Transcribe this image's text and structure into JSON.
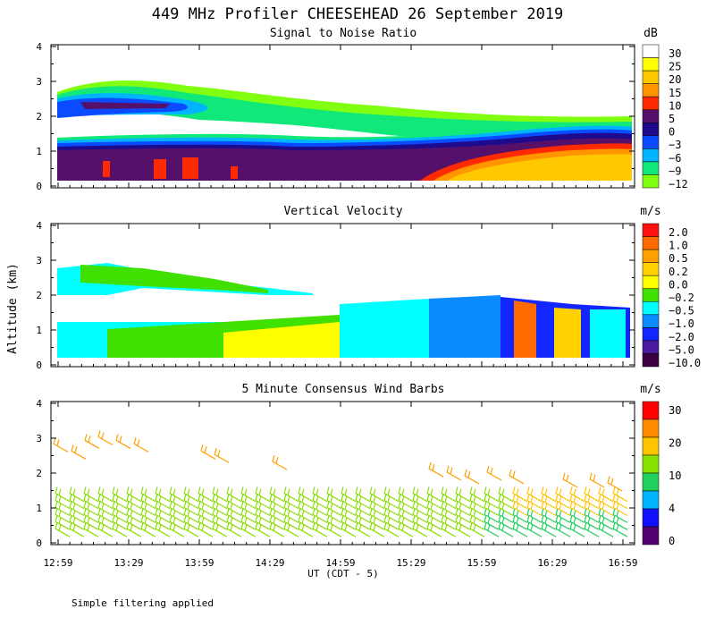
{
  "chart_data": {
    "title": "449 MHz Profiler CHEESEHEAD 26 September 2019",
    "ylabel": "Altitude (km)",
    "xlabel": "UT  (CDT - 5)",
    "x_ticks": [
      "12:59",
      "13:29",
      "13:59",
      "14:29",
      "14:59",
      "15:29",
      "15:59",
      "16:29",
      "16:59"
    ],
    "footnote": "Simple filtering applied",
    "panels": [
      {
        "type": "heatmap",
        "title": "Signal to Noise Ratio",
        "units": "dB",
        "ylim": [
          0,
          4
        ],
        "y_ticks": [
          "0",
          "1",
          "2",
          "3",
          "4"
        ],
        "colorbar": {
          "labels": [
            "30",
            "25",
            "20",
            "15",
            "10",
            "5",
            "0",
            "−3",
            "−6",
            "−9",
            "−12"
          ],
          "colors": [
            "#ffffff",
            "#ffff00",
            "#ffc800",
            "#ff9600",
            "#ff2a00",
            "#55106a",
            "#1e0a8c",
            "#0a4bff",
            "#00b4ff",
            "#10e87a",
            "#80ff10"
          ]
        }
      },
      {
        "type": "heatmap",
        "title": "Vertical Velocity",
        "units": "m/s",
        "ylim": [
          0,
          4
        ],
        "y_ticks": [
          "0",
          "1",
          "2",
          "3",
          "4"
        ],
        "colorbar": {
          "labels": [
            "2.0",
            "1.0",
            "0.5",
            "0.2",
            "0.0",
            "−0.2",
            "−0.5",
            "−1.0",
            "−2.0",
            "−5.0",
            "−10.0"
          ],
          "colors": [
            "#ff1010",
            "#ff6a00",
            "#ffa000",
            "#ffd200",
            "#ffff00",
            "#40e000",
            "#00ffff",
            "#0a8cff",
            "#1426ff",
            "#4a1aa0",
            "#3a0040"
          ]
        }
      },
      {
        "type": "wind_barbs",
        "title": "5 Minute Consensus Wind Barbs",
        "units": "m/s",
        "ylim": [
          0,
          4
        ],
        "y_ticks": [
          "0",
          "1",
          "2",
          "3",
          "4"
        ],
        "colorbar": {
          "labels": [
            "30",
            "20",
            "10",
            "4",
            "0"
          ],
          "colors": [
            "#ff0000",
            "#ff8c00",
            "#ffc400",
            "#88e000",
            "#22d060",
            "#00b4ff",
            "#1010ff",
            "#500070"
          ]
        }
      }
    ]
  }
}
